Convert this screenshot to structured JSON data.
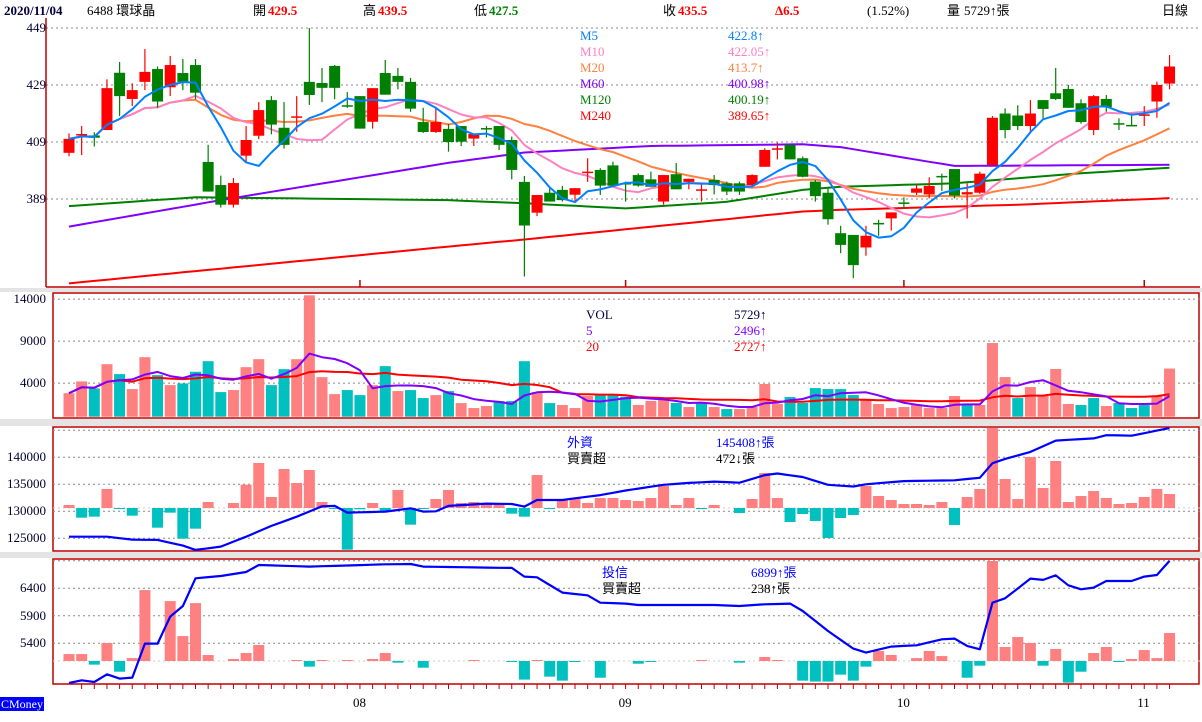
{
  "header": {
    "date": "2020/11/04",
    "stock": "6488 環球晶",
    "open_label": "開",
    "open": "429.5",
    "high_label": "高",
    "high": "439.5",
    "low_label": "低",
    "low": "427.5",
    "close_label": "收",
    "close": "435.5",
    "change": "Δ6.5",
    "change_pct": "(1.52%)",
    "volume_label": "量",
    "volume": "5729↑張",
    "period": "日線"
  },
  "ma_legend": [
    {
      "label": "M5",
      "value": "422.8↑",
      "color": "#0080ff"
    },
    {
      "label": "M10",
      "value": "422.05↑",
      "color": "#ff80c0"
    },
    {
      "label": "M20",
      "value": "413.7↑",
      "color": "#ff8040"
    },
    {
      "label": "M60",
      "value": "400.98↑",
      "color": "#8000ff"
    },
    {
      "label": "M120",
      "value": "400.19↑",
      "color": "#008000"
    },
    {
      "label": "M240",
      "value": "389.65↑",
      "color": "#ff0000"
    }
  ],
  "vol_legend": [
    {
      "label": "VOL",
      "value": "5729↑",
      "color": "#000040"
    },
    {
      "label": "5",
      "value": "2496↑",
      "color": "#8000ff"
    },
    {
      "label": "20",
      "value": "2727↑",
      "color": "#ff0000"
    }
  ],
  "foreign_legend": {
    "title": "外資",
    "title_value": "145408↑張",
    "sub": "買賣超",
    "sub_value": "472↓張"
  },
  "trust_legend": {
    "title": "投信",
    "title_value": "6899↑張",
    "sub": "買賣超",
    "sub_value": "238↑張"
  },
  "axes": {
    "price_ticks": [
      "449",
      "429",
      "409",
      "389"
    ],
    "volume_ticks": [
      "14000",
      "9000",
      "4000"
    ],
    "foreign_ticks": [
      "140000",
      "135000",
      "130000",
      "125000"
    ],
    "trust_ticks": [
      "6400",
      "5900",
      "5400"
    ],
    "months": [
      {
        "label": "08",
        "index": 23
      },
      {
        "label": "09",
        "index": 44
      },
      {
        "label": "10",
        "index": 66
      },
      {
        "label": "11",
        "index": 85
      }
    ]
  },
  "brand": "CMoney",
  "colors": {
    "up": "#ff0000",
    "down": "#008000",
    "vol_up": "#ff8080",
    "vol_down": "#00c0c0",
    "holding_line": "#0000ff",
    "frame": "#c00000"
  },
  "chart_data": {
    "type": "candlestick",
    "title": "6488 環球晶 日線",
    "price_range": [
      355,
      451
    ],
    "ohlc": [
      [
        405.2,
        412.0,
        404.0,
        410.1
      ],
      [
        411.7,
        414.6,
        404.4,
        411.8
      ],
      [
        411.3,
        412.4,
        407.4,
        410.5
      ],
      [
        413.2,
        431.0,
        413.2,
        427.9
      ],
      [
        433.3,
        437.1,
        418.1,
        425.1
      ],
      [
        424.1,
        429.6,
        421.6,
        427.2
      ],
      [
        430.1,
        441.6,
        427.2,
        433.6
      ],
      [
        434.6,
        435.5,
        421.0,
        423.2
      ],
      [
        428.2,
        439.2,
        425.1,
        436.0
      ],
      [
        433.2,
        438.1,
        427.2,
        430.1
      ],
      [
        436.0,
        438.1,
        424.0,
        426.3
      ],
      [
        402.0,
        408.0,
        391.6,
        391.6
      ],
      [
        393.9,
        397.2,
        386.0,
        387.0
      ],
      [
        387.0,
        396.4,
        386.0,
        394.6
      ],
      [
        404.2,
        414.6,
        402.0,
        409.7
      ],
      [
        411.2,
        423.0,
        410.0,
        420.2
      ],
      [
        423.7,
        425.1,
        411.7,
        415.1
      ],
      [
        414.0,
        423.0,
        406.7,
        408.0
      ],
      [
        417.9,
        425.1,
        412.6,
        418.0
      ],
      [
        430.1,
        449.0,
        422.0,
        425.5
      ],
      [
        429.7,
        435.0,
        423.0,
        428.0
      ],
      [
        435.7,
        436.0,
        424.0,
        428.0
      ],
      [
        421.9,
        426.5,
        421.0,
        421.8
      ],
      [
        425.1,
        425.1,
        413.7,
        413.7
      ],
      [
        416.1,
        427.9,
        413.7,
        427.9
      ],
      [
        433.2,
        437.8,
        425.6,
        425.6
      ],
      [
        432.2,
        435.0,
        427.5,
        430.1
      ],
      [
        430.1,
        431.5,
        419.6,
        420.7
      ],
      [
        416.0,
        421.0,
        412.2,
        412.5
      ],
      [
        412.5,
        421.3,
        412.2,
        416.0
      ],
      [
        413.6,
        415.4,
        405.6,
        409.0
      ],
      [
        414.6,
        414.6,
        407.6,
        409.1
      ],
      [
        410.2,
        411.8,
        407.6,
        411.8
      ],
      [
        413.9,
        414.6,
        410.6,
        413.8
      ],
      [
        414.6,
        414.6,
        406.2,
        408.0
      ],
      [
        409.7,
        410.9,
        395.9,
        399.2
      ],
      [
        395.0,
        397.1,
        361.8,
        379.7
      ],
      [
        384.2,
        390.4,
        383.0,
        390.4
      ],
      [
        391.2,
        392.7,
        388.1,
        388.1
      ],
      [
        392.2,
        393.6,
        388.1,
        388.6
      ],
      [
        390.5,
        392.8,
        388.1,
        392.8
      ],
      [
        398.5,
        403.3,
        395.0,
        398.6
      ],
      [
        399.2,
        399.8,
        390.4,
        393.7
      ],
      [
        400.8,
        402.1,
        393.7,
        393.7
      ],
      [
        394.6,
        395.1,
        388.1,
        394.5
      ],
      [
        397.4,
        398.0,
        393.3,
        393.7
      ],
      [
        395.9,
        398.6,
        393.3,
        393.3
      ],
      [
        388.1,
        397.4,
        387.0,
        397.4
      ],
      [
        397.7,
        401.6,
        392.4,
        392.4
      ],
      [
        395.0,
        396.1,
        392.4,
        396.1
      ],
      [
        392.3,
        394.5,
        388.1,
        392.4
      ],
      [
        395.7,
        397.4,
        390.6,
        393.9
      ],
      [
        394.5,
        395.1,
        390.4,
        391.6
      ],
      [
        394.5,
        395.1,
        390.4,
        391.6
      ],
      [
        393.9,
        397.7,
        393.3,
        397.4
      ],
      [
        400.3,
        406.8,
        400.3,
        406.2
      ],
      [
        406.7,
        408.8,
        402.9,
        406.8
      ],
      [
        408.0,
        408.0,
        402.9,
        402.9
      ],
      [
        403.3,
        403.9,
        396.6,
        396.8
      ],
      [
        395.1,
        395.7,
        388.1,
        390.0
      ],
      [
        391.2,
        392.7,
        380.0,
        381.9
      ],
      [
        377.0,
        379.6,
        370.0,
        372.9
      ],
      [
        376.4,
        376.4,
        361.2,
        365.8
      ],
      [
        372.0,
        379.6,
        369.1,
        376.1
      ],
      [
        380.6,
        381.7,
        376.1,
        380.5
      ],
      [
        382.2,
        384.3,
        377.9,
        384.3
      ],
      [
        387.8,
        389.6,
        385.7,
        387.7
      ],
      [
        391.2,
        393.9,
        390.4,
        392.7
      ],
      [
        390.6,
        396.6,
        389.2,
        393.6
      ],
      [
        397.1,
        397.9,
        391.8,
        397.0
      ],
      [
        399.5,
        399.5,
        389.2,
        390.2
      ],
      [
        390.6,
        394.5,
        382.2,
        391.4
      ],
      [
        391.2,
        398.6,
        390.8,
        397.9
      ],
      [
        400.9,
        418.1,
        400.9,
        417.5
      ],
      [
        419.0,
        420.8,
        410.3,
        413.2
      ],
      [
        418.3,
        421.9,
        413.2,
        414.6
      ],
      [
        414.6,
        423.7,
        412.2,
        419.0
      ],
      [
        423.7,
        423.7,
        417.3,
        420.6
      ],
      [
        426.1,
        435.0,
        423.7,
        424.1
      ],
      [
        427.6,
        429.0,
        421.0,
        421.0
      ],
      [
        422.6,
        424.0,
        415.4,
        416.0
      ],
      [
        413.2,
        425.5,
        411.4,
        425.1
      ],
      [
        424.1,
        425.5,
        419.6,
        421.2
      ],
      [
        415.6,
        417.3,
        413.2,
        415.5
      ],
      [
        415.0,
        419.0,
        414.9,
        414.9
      ],
      [
        418.6,
        421.6,
        414.6,
        418.7
      ],
      [
        423.2,
        430.2,
        417.5,
        429.0
      ],
      [
        429.5,
        439.5,
        427.5,
        435.5
      ]
    ],
    "ma_long": {
      "M60": [
        [
          0,
          379.3
        ],
        [
          12,
          388.6
        ],
        [
          30,
          401.7
        ],
        [
          36,
          405.3
        ],
        [
          46,
          407.6
        ],
        [
          58,
          408.2
        ],
        [
          61,
          407.2
        ],
        [
          70,
          400.6
        ],
        [
          87,
          401.0
        ]
      ],
      "M120": [
        [
          0,
          386.5
        ],
        [
          10,
          389.6
        ],
        [
          30,
          388.6
        ],
        [
          36,
          387.5
        ],
        [
          44,
          385.7
        ],
        [
          52,
          388.0
        ],
        [
          58,
          392.2
        ],
        [
          61,
          393.3
        ],
        [
          70,
          394.5
        ],
        [
          80,
          398.0
        ],
        [
          87,
          400.0
        ]
      ],
      "M240": [
        [
          0,
          359.4
        ],
        [
          30,
          372.3
        ],
        [
          36,
          374.8
        ],
        [
          58,
          384.6
        ],
        [
          61,
          385.2
        ],
        [
          75,
          387.0
        ],
        [
          87,
          389.3
        ]
      ]
    },
    "volume": [
      2800,
      4200,
      3370,
      6250,
      5070,
      3290,
      7090,
      4950,
      3760,
      3960,
      5350,
      6610,
      2930,
      3170,
      5900,
      6850,
      3760,
      5660,
      6850,
      14450,
      4710,
      2690,
      3170,
      2570,
      3760,
      6020,
      3050,
      3170,
      2220,
      2570,
      3050,
      1620,
      1030,
      1270,
      1860,
      1860,
      6610,
      2930,
      1620,
      1390,
      1030,
      2460,
      2570,
      2570,
      2380,
      1390,
      1870,
      2100,
      1630,
      1150,
      1630,
      1150,
      910,
      910,
      1150,
      3890,
      1510,
      2340,
      1630,
      3410,
      3290,
      3290,
      2580,
      1980,
      1510,
      1030,
      1150,
      1390,
      1030,
      1030,
      2460,
      1390,
      1390,
      8770,
      4720,
      2220,
      3530,
      2460,
      5680,
      1510,
      1390,
      2220,
      1270,
      1630,
      1030,
      1390,
      2460,
      5729
    ],
    "volume_dir": "rrgrgrrgrggggrrrggrrrrggrgrggrgrrrgggrgrrrgggrrrgrgrgrrrrggggggrrrrrrrrgrrrgrrrrggrgggrrr",
    "volume_range": [
      0,
      15000
    ],
    "foreign_net": [
      101,
      -326,
      -292,
      641,
      -22,
      -259,
      0,
      -663,
      -157,
      -1034,
      -697,
      202,
      0,
      169,
      787,
      1517,
      371,
      1315,
      843,
      1281,
      202,
      -22,
      -1405,
      -45,
      169,
      -90,
      607,
      -562,
      -34,
      303,
      607,
      169,
      202,
      135,
      135,
      -191,
      -292,
      1113,
      -22,
      270,
      337,
      169,
      337,
      337,
      270,
      236,
      337,
      742,
      101,
      337,
      -11,
      101,
      0,
      -169,
      303,
      1180,
      337,
      -472,
      -202,
      -438,
      -1012,
      -337,
      -236,
      742,
      405,
      270,
      135,
      135,
      101,
      202,
      -573,
      371,
      641,
      2698,
      978,
      303,
      1720,
      674,
      1585,
      202,
      405,
      573,
      337,
      135,
      169,
      371,
      641,
      472
    ],
    "foreign_holding": [
      [
        0,
        125300
      ],
      [
        3,
        125300
      ],
      [
        5,
        124750
      ],
      [
        7,
        124700
      ],
      [
        9,
        123650
      ],
      [
        10,
        122850
      ],
      [
        12,
        123460
      ],
      [
        14,
        125300
      ],
      [
        16,
        127300
      ],
      [
        18,
        129000
      ],
      [
        20,
        130930
      ],
      [
        21,
        131000
      ],
      [
        22,
        129750
      ],
      [
        25,
        129940
      ],
      [
        27,
        130560
      ],
      [
        28,
        129940
      ],
      [
        29,
        130000
      ],
      [
        30,
        131000
      ],
      [
        33,
        131420
      ],
      [
        35,
        131360
      ],
      [
        36,
        130870
      ],
      [
        37,
        132100
      ],
      [
        39,
        132100
      ],
      [
        42,
        133000
      ],
      [
        44,
        133850
      ],
      [
        47,
        134900
      ],
      [
        49,
        135250
      ],
      [
        51,
        135500
      ],
      [
        53,
        135300
      ],
      [
        55,
        136700
      ],
      [
        56,
        137000
      ],
      [
        58,
        136350
      ],
      [
        60,
        134900
      ],
      [
        62,
        134600
      ],
      [
        63,
        135000
      ],
      [
        66,
        135600
      ],
      [
        70,
        135750
      ],
      [
        72,
        136200
      ],
      [
        73,
        138900
      ],
      [
        74,
        139700
      ],
      [
        76,
        141000
      ],
      [
        78,
        143100
      ],
      [
        81,
        143500
      ],
      [
        82,
        144100
      ],
      [
        84,
        144000
      ],
      [
        87,
        145408
      ]
    ],
    "trust_net": [
      59,
      59,
      -31,
      153,
      -91,
      25,
      603,
      0,
      509,
      212,
      492,
      51,
      0,
      17,
      68,
      136,
      0,
      0,
      8,
      -48,
      8,
      0,
      8,
      0,
      17,
      68,
      -14,
      0,
      -57,
      0,
      0,
      0,
      8,
      0,
      0,
      -3,
      -158,
      8,
      -133,
      -167,
      -3,
      0,
      -142,
      0,
      0,
      -23,
      -3,
      0,
      0,
      0,
      8,
      0,
      0,
      -14,
      0,
      34,
      8,
      0,
      -167,
      -175,
      -175,
      -116,
      -167,
      -48,
      85,
      51,
      0,
      25,
      85,
      42,
      0,
      -142,
      -40,
      850,
      119,
      204,
      153,
      -40,
      102,
      -184,
      -91,
      68,
      119,
      -3,
      17,
      93,
      25,
      238
    ],
    "trust_holding": [
      [
        0,
        4679
      ],
      [
        1,
        4727
      ],
      [
        2,
        4697
      ],
      [
        3,
        4836
      ],
      [
        4,
        4758
      ],
      [
        5,
        4776
      ],
      [
        6,
        5394
      ],
      [
        7,
        5394
      ],
      [
        8,
        5885
      ],
      [
        9,
        6079
      ],
      [
        10,
        6582
      ],
      [
        12,
        6624
      ],
      [
        14,
        6697
      ],
      [
        15,
        6824
      ],
      [
        19,
        6794
      ],
      [
        25,
        6836
      ],
      [
        27,
        6842
      ],
      [
        28,
        6794
      ],
      [
        35,
        6770
      ],
      [
        36,
        6612
      ],
      [
        37,
        6600
      ],
      [
        39,
        6321
      ],
      [
        41,
        6273
      ],
      [
        42,
        6139
      ],
      [
        44,
        6121
      ],
      [
        45,
        6097
      ],
      [
        51,
        6097
      ],
      [
        53,
        6079
      ],
      [
        55,
        6109
      ],
      [
        57,
        6121
      ],
      [
        58,
        5988
      ],
      [
        60,
        5624
      ],
      [
        62,
        5303
      ],
      [
        63,
        5230
      ],
      [
        65,
        5340
      ],
      [
        67,
        5364
      ],
      [
        69,
        5473
      ],
      [
        70,
        5485
      ],
      [
        71,
        5352
      ],
      [
        72,
        5291
      ],
      [
        73,
        6139
      ],
      [
        74,
        6218
      ],
      [
        76,
        6576
      ],
      [
        77,
        6552
      ],
      [
        78,
        6636
      ],
      [
        79,
        6455
      ],
      [
        80,
        6382
      ],
      [
        81,
        6412
      ],
      [
        82,
        6533
      ],
      [
        84,
        6533
      ],
      [
        85,
        6612
      ],
      [
        86,
        6642
      ],
      [
        87,
        6899
      ]
    ]
  }
}
